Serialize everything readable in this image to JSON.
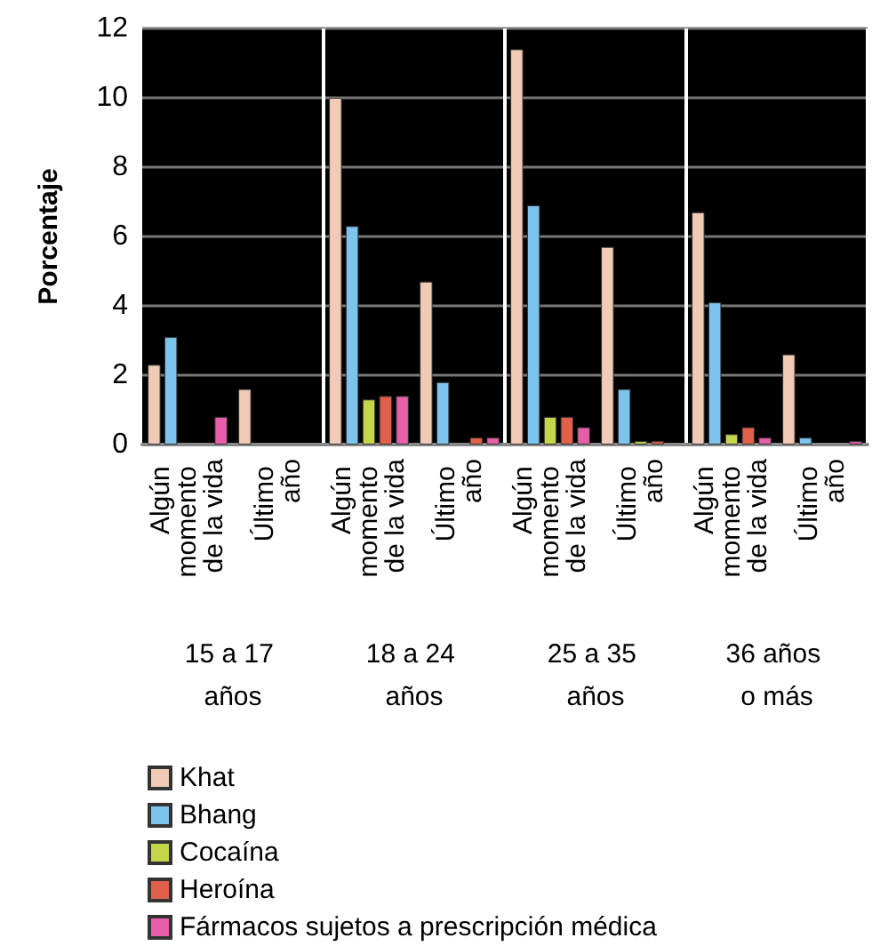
{
  "chart_data": {
    "type": "bar",
    "ylabel": "Porcentaje",
    "categories": [
      "Algún momento de la vida",
      "Último año",
      "Algún momento de la vida",
      "Último año",
      "Algún momento de la vida",
      "Último año",
      "Algún momento de la vida",
      "Último año"
    ],
    "series": [
      {
        "name": "Khat",
        "color": "#f2cbb7",
        "values": [
          2.3,
          1.6,
          10.0,
          4.7,
          11.4,
          5.7,
          6.7,
          2.6
        ]
      },
      {
        "name": "Bhang",
        "color": "#7dc4ed",
        "values": [
          3.1,
          0,
          6.3,
          1.8,
          6.9,
          1.6,
          4.1,
          0.2
        ]
      },
      {
        "name": "Cocaína",
        "color": "#c5d649",
        "values": [
          0,
          0,
          1.3,
          0,
          0.8,
          0.1,
          0.3,
          0
        ]
      },
      {
        "name": "Heroína",
        "color": "#e0604a",
        "values": [
          0,
          0,
          1.4,
          0.2,
          0.8,
          0.1,
          0.5,
          0
        ]
      },
      {
        "name": "Fármacos sujetos a prescripción médica",
        "color": "#e65fa8",
        "values": [
          0.8,
          0,
          1.4,
          0.2,
          0.5,
          0,
          0.2,
          0.1
        ]
      }
    ],
    "annotations": [
      "15 a 17 años",
      "18 a 24 años",
      "25 a 35 años",
      "36 años o más"
    ],
    "ylim": [
      0,
      12
    ],
    "yticks": [
      0,
      2,
      4,
      6,
      8,
      10,
      12
    ],
    "grid": "y",
    "legend": "bottom"
  }
}
